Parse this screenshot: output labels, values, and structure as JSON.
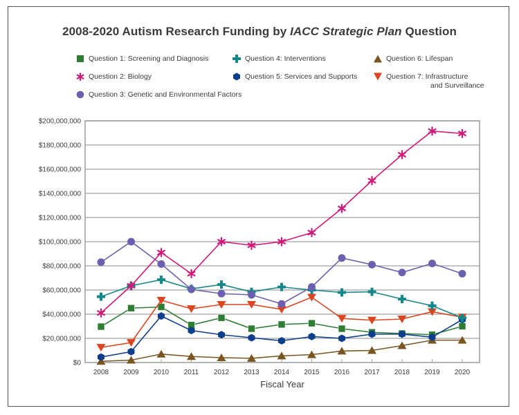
{
  "chart_data": {
    "type": "line",
    "title_parts": [
      "2008-2020 Autism Research Funding by ",
      "IACC Strategic Plan",
      " Question"
    ],
    "title": "2008-2020 Autism Research Funding by IACC Strategic Plan Question",
    "xlabel": "Fiscal Year",
    "ylabel": "",
    "x": [
      "2008",
      "2009",
      "2010",
      "2011",
      "2012",
      "2013",
      "2014",
      "2015",
      "2016",
      "2017",
      "2018",
      "2019",
      "2020"
    ],
    "ylim": [
      0,
      200000000
    ],
    "yticks": [
      0,
      20000000,
      40000000,
      60000000,
      80000000,
      100000000,
      120000000,
      140000000,
      160000000,
      180000000,
      200000000
    ],
    "ytick_labels": [
      "$0",
      "$20,000,000",
      "$40,000,000",
      "$60,000,000",
      "$80,000,000",
      "$100,000,000",
      "$120,000,000",
      "$140,000,000",
      "$160,000,000",
      "$180,000,000",
      "$200,000,000"
    ],
    "grid": "horizontal",
    "legend_position": "top",
    "series": [
      {
        "name": "Question 1: Screening and Diagnosis",
        "marker": "square",
        "color": "#2e7d32",
        "values": [
          29700000,
          45000000,
          46000000,
          31000000,
          37000000,
          28000000,
          31500000,
          32500000,
          28000000,
          25000000,
          24000000,
          23000000,
          30000000
        ]
      },
      {
        "name": "Question 2: Biology",
        "marker": "asterisk",
        "color": "#d0177a",
        "values": [
          41000000,
          63500000,
          91000000,
          73500000,
          100000000,
          97000000,
          100000000,
          107500000,
          127500000,
          150500000,
          172000000,
          191500000,
          189500000
        ]
      },
      {
        "name": "Question 3: Genetic and Environmental Factors",
        "marker": "circle",
        "color": "#6b5fb0",
        "values": [
          83000000,
          100000000,
          81500000,
          60500000,
          57000000,
          56000000,
          48500000,
          62500000,
          86500000,
          81000000,
          74500000,
          82000000,
          73500000
        ]
      },
      {
        "name": "Question 4: Interventions",
        "marker": "plus",
        "color": "#13878a",
        "values": [
          54500000,
          63500000,
          68500000,
          61000000,
          64500000,
          58500000,
          62500000,
          60000000,
          58000000,
          58500000,
          52500000,
          47000000,
          37000000
        ]
      },
      {
        "name": "Question 5: Services and Supports",
        "marker": "hexagon",
        "color": "#0d3e8c",
        "values": [
          4500000,
          9000000,
          38500000,
          26500000,
          23000000,
          20500000,
          18000000,
          21500000,
          20000000,
          23500000,
          23500000,
          21000000,
          35500000
        ]
      },
      {
        "name": "Question 6: Lifespan",
        "marker": "triangle",
        "color": "#7a5520",
        "values": [
          1000000,
          2000000,
          7000000,
          5000000,
          4000000,
          3500000,
          5500000,
          6500000,
          9500000,
          10000000,
          14000000,
          18500000,
          18500000
        ]
      },
      {
        "name": "Question 7: Infrastructure and Surveillance",
        "marker": "triangle-down",
        "color": "#dc4520",
        "values": [
          12500000,
          16500000,
          51500000,
          44500000,
          48000000,
          48000000,
          44000000,
          54000000,
          36500000,
          35000000,
          36000000,
          42000000,
          37500000
        ]
      }
    ]
  },
  "legend": [
    {
      "line1": "Question 1: Screening and Diagnosis",
      "line2": ""
    },
    {
      "line1": "Question 2: Biology",
      "line2": ""
    },
    {
      "line1": "Question 3: Genetic and Environmental Factors",
      "line2": ""
    },
    {
      "line1": "Question 4: Interventions",
      "line2": ""
    },
    {
      "line1": "Question 5: Services and Supports",
      "line2": ""
    },
    {
      "line1": "Question 6: Lifespan",
      "line2": ""
    },
    {
      "line1": "Question 7: Infrastructure",
      "line2": "and Surveillance"
    }
  ]
}
